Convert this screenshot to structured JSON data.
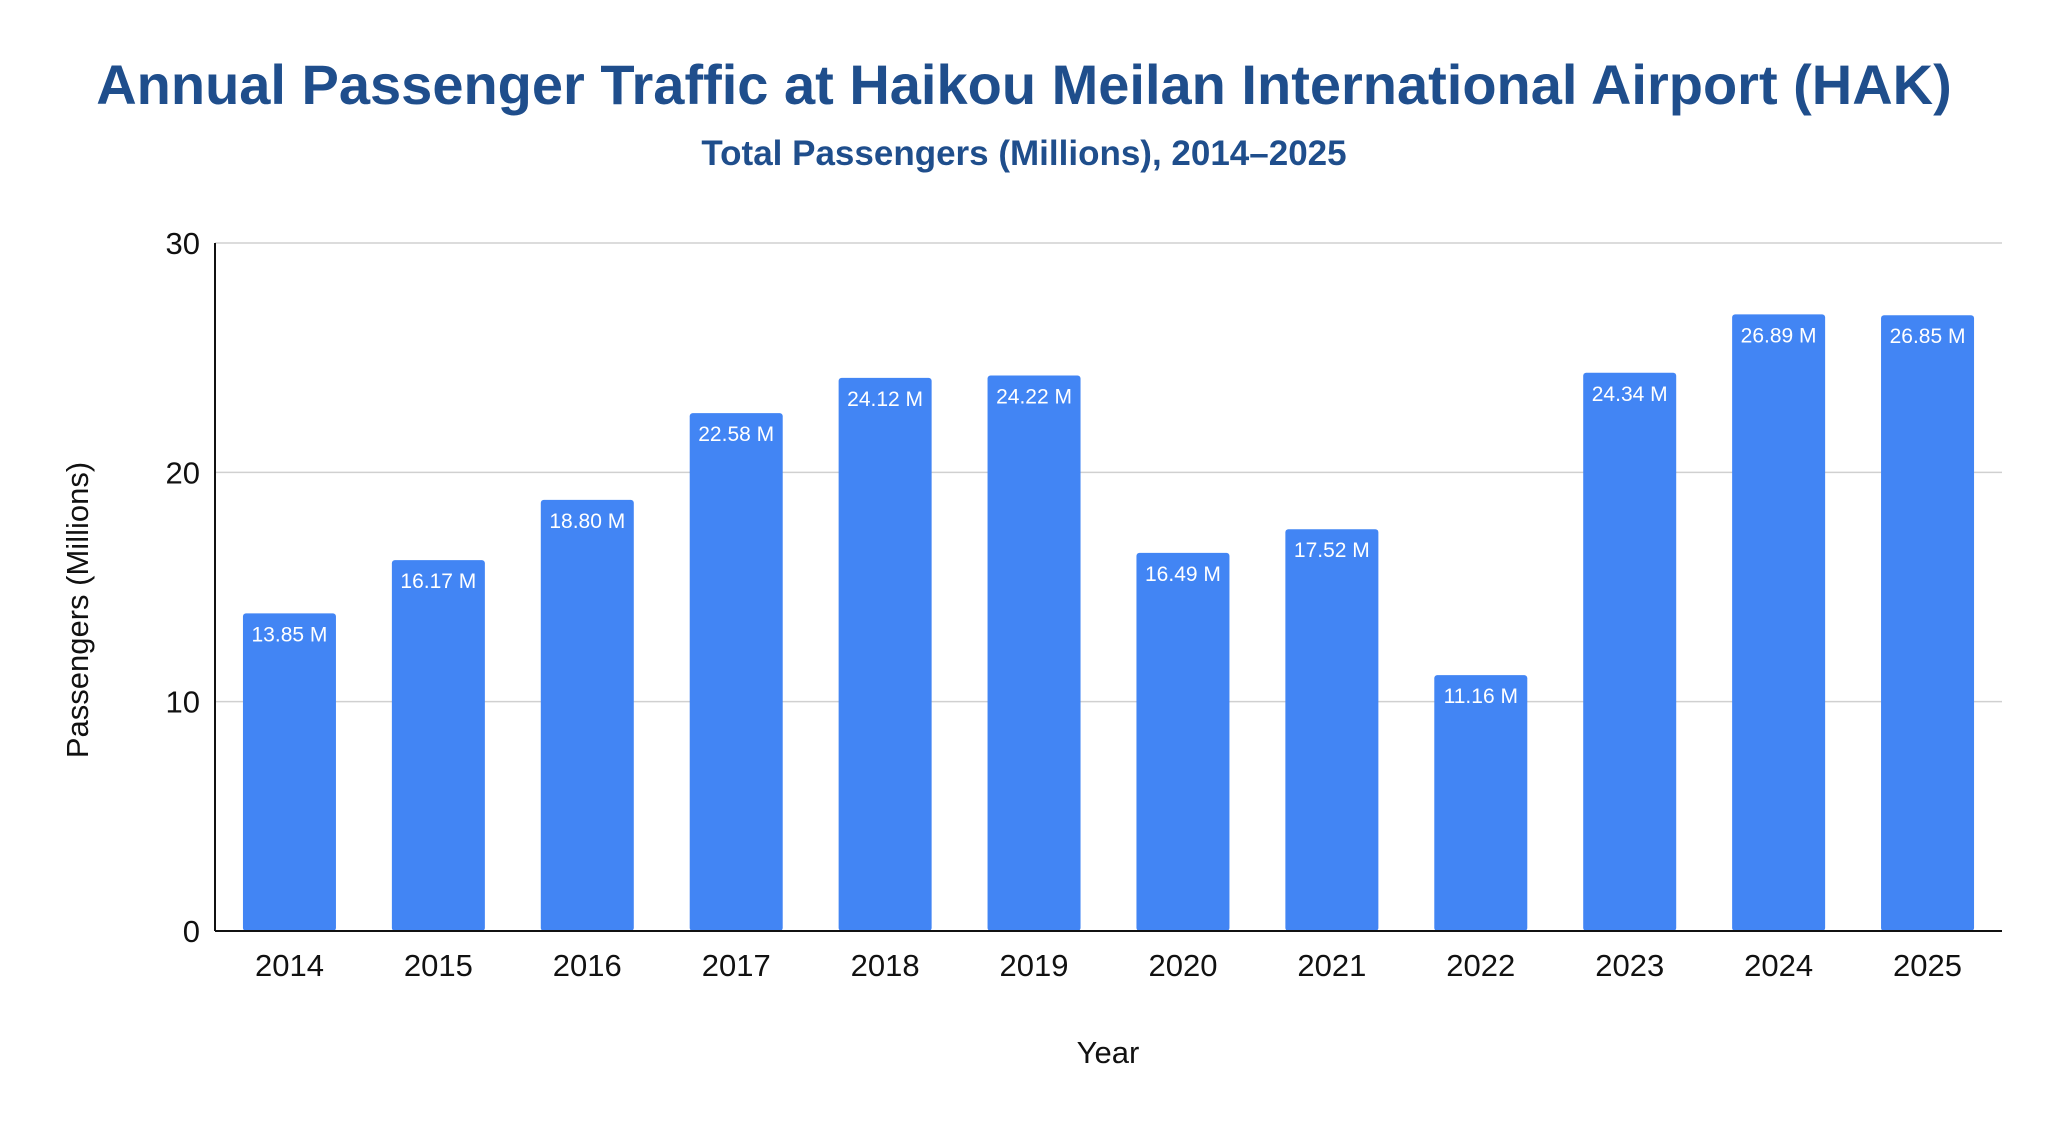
{
  "chart_data": {
    "type": "bar",
    "title": "Annual Passenger Traffic at Haikou Meilan International Airport (HAK)",
    "subtitle": "Total Passengers (Millions), 2014–2025",
    "xlabel": "Year",
    "ylabel": "Passengers (Millions)",
    "categories": [
      "2014",
      "2015",
      "2016",
      "2017",
      "2018",
      "2019",
      "2020",
      "2021",
      "2022",
      "2023",
      "2024",
      "2025"
    ],
    "values": [
      13.85,
      16.17,
      18.8,
      22.58,
      24.12,
      24.22,
      16.49,
      17.52,
      11.16,
      24.34,
      26.89,
      26.85
    ],
    "data_labels": [
      "13.85 M",
      "16.17 M",
      "18.80 M",
      "22.58 M",
      "24.12 M",
      "24.22 M",
      "16.49 M",
      "17.52 M",
      "11.16 M",
      "24.34 M",
      "26.89 M",
      "26.85 M"
    ],
    "ylim": [
      0,
      30
    ],
    "yticks": [
      0,
      10,
      20,
      30
    ],
    "grid": true,
    "legend": "none",
    "colors": {
      "bar": "#4285f4",
      "title": "#1f4e8c",
      "grid": "#d0d0d0",
      "axis": "#111111",
      "label": "#ffffff"
    }
  }
}
